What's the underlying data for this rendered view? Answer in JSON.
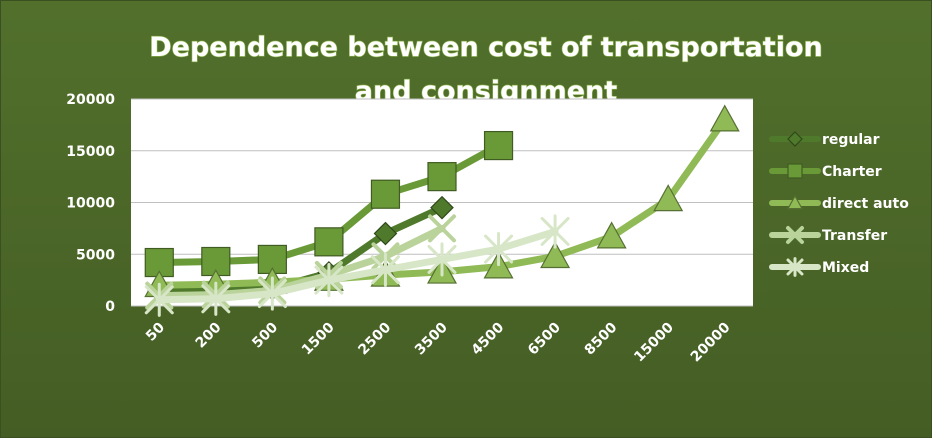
{
  "chart_data": {
    "type": "line",
    "title_lines": [
      "Dependence between cost of transportation",
      "and consignment"
    ],
    "xlabel": "",
    "ylabel": "",
    "categories": [
      "50",
      "200",
      "500",
      "1500",
      "2500",
      "3500",
      "4500",
      "6500",
      "8500",
      "15000",
      "20000"
    ],
    "y_ticks": [
      "0",
      "5000",
      "10000",
      "15000",
      "20000"
    ],
    "ylim": [
      0,
      20000
    ],
    "grid": "horizontal",
    "legend_position": "right",
    "series": [
      {
        "name": "regular",
        "marker": "diamond",
        "color": "#4f7a2c",
        "values": [
          1500,
          1600,
          1700,
          3200,
          7000,
          9500,
          null,
          null,
          null,
          null,
          null
        ]
      },
      {
        "name": "Charter",
        "marker": "square",
        "color": "#6a9a38",
        "values": [
          4200,
          4300,
          4500,
          6200,
          10800,
          12500,
          15500,
          null,
          null,
          null,
          null
        ]
      },
      {
        "name": "direct auto",
        "marker": "triangle",
        "color": "#8fba55",
        "values": [
          2000,
          2100,
          2300,
          2600,
          3000,
          3300,
          3800,
          4800,
          6700,
          10300,
          18000
        ]
      },
      {
        "name": "Transfer",
        "marker": "x",
        "color": "#b9d39a",
        "values": [
          1000,
          1100,
          1500,
          3000,
          4800,
          7500,
          null,
          null,
          null,
          null,
          null
        ]
      },
      {
        "name": "Mixed",
        "marker": "star",
        "color": "#d8e6c8",
        "values": [
          600,
          700,
          1200,
          2500,
          3500,
          4500,
          5500,
          7200,
          null,
          null,
          null
        ]
      }
    ]
  }
}
